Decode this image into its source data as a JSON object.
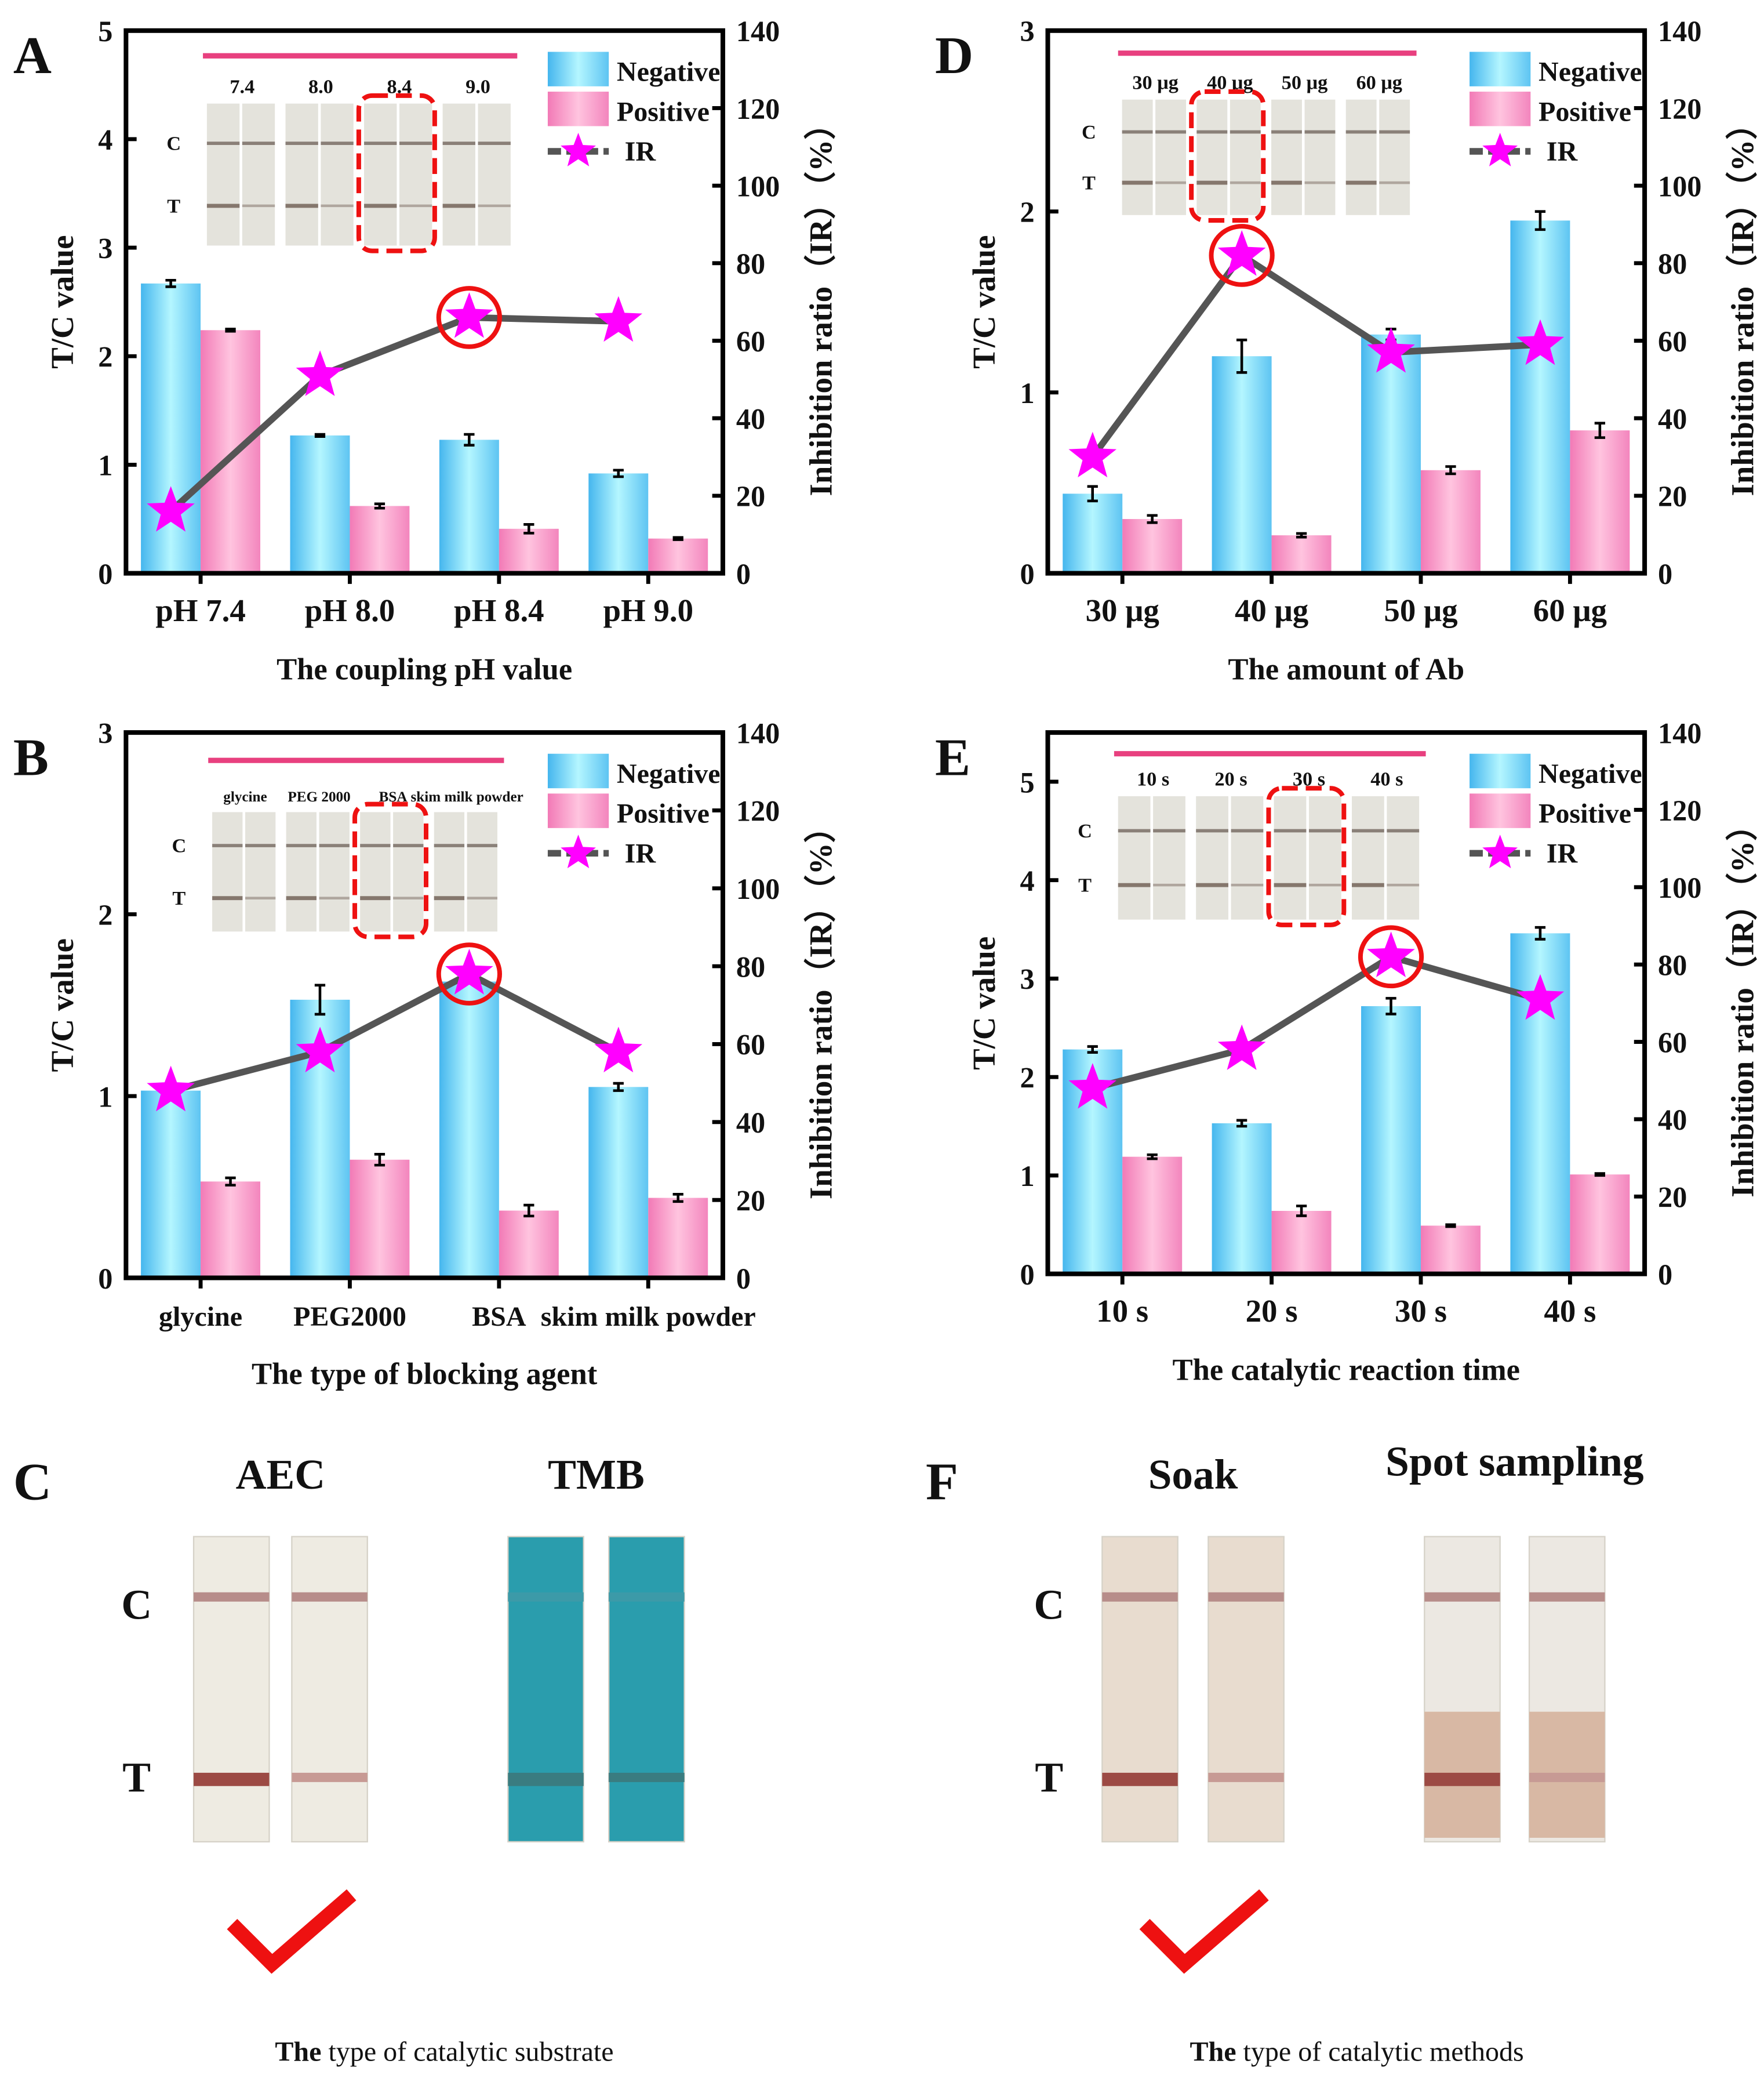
{
  "chart_data": [
    {
      "id": "A",
      "type": "bar",
      "panel_label": "A",
      "categories": [
        "pH 7.4",
        "pH 8.0",
        "pH 8.4",
        "pH 9.0"
      ],
      "xlabel": "The  coupling pH value",
      "ylabel": "T/C value",
      "y2label": "Inhibition ratio（IR）（%）",
      "ylim": [
        0,
        5
      ],
      "yticks": [
        "0",
        "1",
        "2",
        "3",
        "4",
        "5"
      ],
      "y2lim": [
        0,
        140
      ],
      "y2ticks": [
        "0",
        "20",
        "40",
        "60",
        "80",
        "100",
        "120",
        "140"
      ],
      "series": [
        {
          "name": "Negative",
          "values": [
            2.67,
            1.27,
            1.23,
            0.92
          ],
          "errors": [
            0.03,
            0.01,
            0.05,
            0.03
          ]
        },
        {
          "name": "Positive",
          "values": [
            2.24,
            0.62,
            0.41,
            0.32
          ],
          "errors": [
            0.01,
            0.02,
            0.04,
            0.01
          ]
        },
        {
          "name": "IR",
          "axis": "right",
          "values": [
            16,
            51,
            66,
            65
          ]
        }
      ],
      "highlight_index": 2,
      "inset": {
        "labels": [
          "7.4",
          "8.0",
          "8.4",
          "9.0"
        ],
        "row_labels": [
          "C",
          "T"
        ]
      },
      "legend": [
        "Negative",
        "Positive",
        "IR"
      ],
      "legend_position": "top-right"
    },
    {
      "id": "D",
      "type": "bar",
      "panel_label": "D",
      "categories": [
        "30 μg",
        "40 μg",
        "50 μg",
        "60 μg"
      ],
      "xlabel": "The amount of Ab",
      "ylabel": "T/C value",
      "y2label": "Inhibition ratio（IR）（%）",
      "ylim": [
        0,
        3
      ],
      "yticks": [
        "0",
        "1",
        "2",
        "3"
      ],
      "y2lim": [
        0,
        140
      ],
      "y2ticks": [
        "0",
        "20",
        "40",
        "60",
        "80",
        "100",
        "120",
        "140"
      ],
      "series": [
        {
          "name": "Negative",
          "values": [
            0.44,
            1.2,
            1.32,
            1.95
          ],
          "errors": [
            0.04,
            0.09,
            0.03,
            0.05
          ]
        },
        {
          "name": "Positive",
          "values": [
            0.3,
            0.21,
            0.57,
            0.79
          ],
          "errors": [
            0.02,
            0.01,
            0.02,
            0.04
          ]
        },
        {
          "name": "IR",
          "axis": "right",
          "values": [
            30,
            82,
            57,
            59
          ]
        }
      ],
      "highlight_index": 1,
      "inset": {
        "labels": [
          "30 μg",
          "40 μg",
          "50 μg",
          "60 μg"
        ],
        "row_labels": [
          "C",
          "T"
        ]
      },
      "legend": [
        "Negative",
        "Positive",
        "IR"
      ],
      "legend_position": "top-right"
    },
    {
      "id": "B",
      "type": "bar",
      "panel_label": "B",
      "categories": [
        "glycine",
        "PEG2000",
        "BSA",
        "skim milk powder"
      ],
      "xlabel": "The type of blocking agent",
      "ylabel": "T/C value",
      "y2label": "Inhibition ratio（IR）（%）",
      "ylim": [
        0,
        3
      ],
      "yticks": [
        "0",
        "1",
        "2",
        "3"
      ],
      "y2lim": [
        0,
        140
      ],
      "y2ticks": [
        "0",
        "20",
        "40",
        "60",
        "80",
        "100",
        "120",
        "140"
      ],
      "series": [
        {
          "name": "Negative",
          "values": [
            1.03,
            1.53,
            1.63,
            1.05
          ],
          "errors": [
            0.01,
            0.08,
            0.01,
            0.02
          ]
        },
        {
          "name": "Positive",
          "values": [
            0.53,
            0.65,
            0.37,
            0.44
          ],
          "errors": [
            0.02,
            0.03,
            0.03,
            0.02
          ]
        },
        {
          "name": "IR",
          "axis": "right",
          "values": [
            48,
            58,
            78,
            58
          ]
        }
      ],
      "highlight_index": 2,
      "inset": {
        "labels": [
          "glycine",
          "PEG 2000",
          "BSA",
          "skim milk powder"
        ],
        "row_labels": [
          "C",
          "T"
        ]
      },
      "legend": [
        "Negative",
        "Positive",
        "IR"
      ],
      "legend_position": "top-right"
    },
    {
      "id": "E",
      "type": "bar",
      "panel_label": "E",
      "categories": [
        "10 s",
        "20 s",
        "30 s",
        "40 s"
      ],
      "xlabel": "The catalytic reaction time",
      "ylabel": "T/C value",
      "y2label": "Inhibition ratio（IR）（%）",
      "ylim": [
        0,
        5.5
      ],
      "yticks": [
        "0",
        "1",
        "2",
        "3",
        "4",
        "5"
      ],
      "y2lim": [
        0,
        140
      ],
      "y2ticks": [
        "0",
        "20",
        "40",
        "60",
        "80",
        "100",
        "120",
        "140"
      ],
      "series": [
        {
          "name": "Negative",
          "values": [
            2.28,
            1.53,
            2.72,
            3.46
          ],
          "errors": [
            0.03,
            0.03,
            0.08,
            0.06
          ]
        },
        {
          "name": "Positive",
          "values": [
            1.19,
            0.64,
            0.49,
            1.01
          ],
          "errors": [
            0.02,
            0.05,
            0.01,
            0.01
          ]
        },
        {
          "name": "IR",
          "axis": "right",
          "values": [
            48,
            58,
            82,
            71
          ]
        }
      ],
      "highlight_index": 2,
      "inset": {
        "labels": [
          "10 s",
          "20 s",
          "30 s",
          "40 s"
        ],
        "row_labels": [
          "C",
          "T"
        ]
      },
      "legend": [
        "Negative",
        "Positive",
        "IR"
      ],
      "legend_position": "top-right"
    }
  ],
  "photo_panels": [
    {
      "id": "C",
      "panel_label": "C",
      "groups": [
        "AEC",
        "TMB"
      ],
      "row_labels": [
        "C",
        "T"
      ],
      "caption_bold": "The",
      "caption_rest": " type of catalytic substrate",
      "selected_group": 0
    },
    {
      "id": "F",
      "panel_label": "F",
      "groups": [
        "Soak",
        "Spot sampling"
      ],
      "row_labels": [
        "C",
        "T"
      ],
      "caption_bold": "The",
      "caption_rest": " type of catalytic methods",
      "selected_group": 0
    }
  ],
  "colors": {
    "negative": "#5cc8f2",
    "positive": "#f58cc2",
    "ir_star": "#ff00ff",
    "ir_line": "#555555",
    "highlight": "#ee1111",
    "inset_bar": "#e8407f"
  }
}
